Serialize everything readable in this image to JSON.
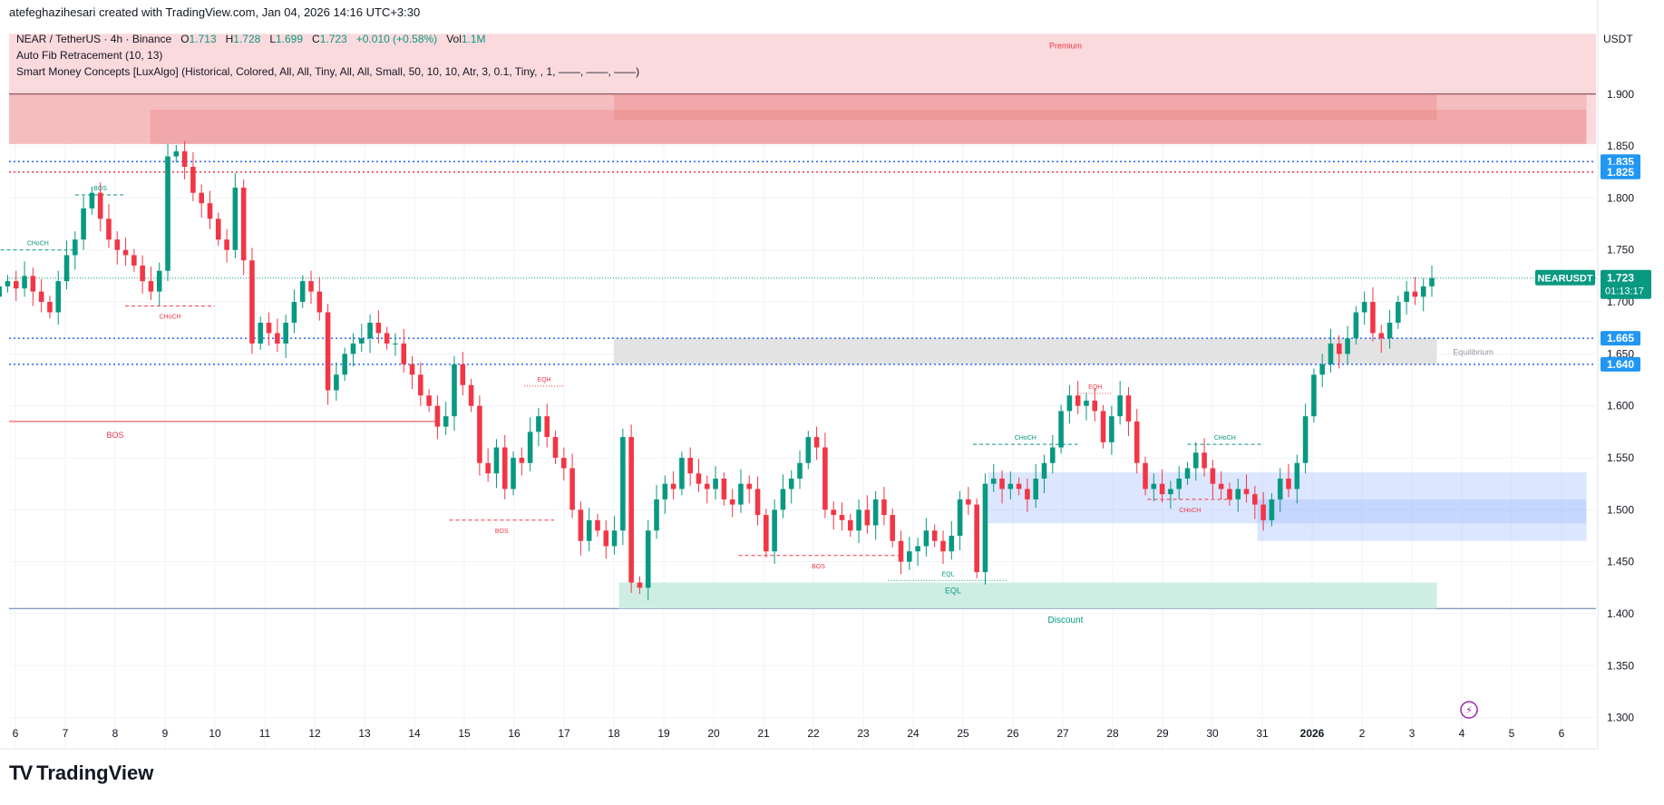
{
  "header": {
    "byline": "atefeghazihesari created with TradingView.com, Jan 04, 2026 14:16 UTC+3:30"
  },
  "legend": {
    "symbol": "NEAR / TetherUS · 4h · Binance",
    "o_label": "O",
    "o_value": "1.713",
    "h_label": "H",
    "h_value": "1.728",
    "l_label": "L",
    "l_value": "1.699",
    "c_label": "C",
    "c_value": "1.723",
    "change": "+0.010 (+0.58%)",
    "vol_label": "Vol",
    "vol_value": "1.1M",
    "indicator1": "Auto Fib Retracement (10, 13)",
    "indicator2": "Smart Money Concepts [LuxAlgo] (Historical, Colored, All, All, Tiny, All, All, Small, 50, 10, 10, Atr, 3, 0.1, Tiny, , 1, ——, ——, ——)"
  },
  "currency": "USDT",
  "brand": {
    "name": "TradingView",
    "logo": "TV"
  },
  "colors": {
    "up": "#089981",
    "down": "#f23645",
    "blue": "#2962ff",
    "premium_fill": "#fbdadd",
    "discount_fill": "#cfeee3",
    "equilibrium_fill": "#e3e3e3",
    "ob_blue": "#9bb7ff",
    "badge_blue": "#2196f3",
    "price_badge": "#089981"
  },
  "chart_data": {
    "type": "candlestick",
    "x_ticks": [
      "6",
      "7",
      "8",
      "9",
      "10",
      "11",
      "12",
      "13",
      "14",
      "15",
      "16",
      "17",
      "18",
      "19",
      "20",
      "21",
      "22",
      "23",
      "24",
      "25",
      "26",
      "27",
      "28",
      "29",
      "30",
      "31",
      "2026",
      "2",
      "3",
      "4",
      "5",
      "6"
    ],
    "y_ticks": [
      "1.900",
      "1.850",
      "1.800",
      "1.750",
      "1.700",
      "1.650",
      "1.600",
      "1.550",
      "1.500",
      "1.450",
      "1.400",
      "1.350",
      "1.300"
    ],
    "ylim": [
      1.27,
      1.96
    ],
    "price_levels": [
      {
        "label": "1.835",
        "value": 1.835,
        "style": "blue-dotted"
      },
      {
        "label": "1.825",
        "value": 1.825,
        "style": "red-dotted"
      },
      {
        "label": "1.665",
        "value": 1.665,
        "style": "blue-dotted"
      },
      {
        "label": "1.640",
        "value": 1.64,
        "style": "blue-dotted"
      }
    ],
    "current_price": {
      "symbol": "NEARUSDT",
      "value": "1.723",
      "countdown": "01:13:17"
    },
    "zones": [
      {
        "name": "Premium",
        "from_day": 5.0,
        "to_day": 37.5,
        "low": 1.852,
        "high": 1.958,
        "kind": "premium"
      },
      {
        "name": "Equilibrium",
        "from_day": 18.0,
        "to_day": 34.5,
        "low": 1.64,
        "high": 1.665,
        "kind": "equilibrium"
      },
      {
        "name": "Discount",
        "from_day": 5.0,
        "to_day": 37.5,
        "low": 1.405,
        "high": 1.405,
        "kind": "discount-line"
      },
      {
        "name": "EQL",
        "from_day": 18.1,
        "to_day": 34.5,
        "low": 1.405,
        "high": 1.43,
        "kind": "discount"
      }
    ],
    "order_blocks": [
      {
        "from_day": 5.0,
        "to_day": 37.5,
        "low": 1.852,
        "high": 1.9,
        "color": "red"
      },
      {
        "from_day": 8.7,
        "to_day": 37.5,
        "low": 1.852,
        "high": 1.885,
        "color": "red"
      },
      {
        "from_day": 18.0,
        "to_day": 34.5,
        "low": 1.875,
        "high": 1.9,
        "color": "red"
      },
      {
        "from_day": 25.5,
        "to_day": 37.5,
        "low": 1.487,
        "high": 1.536,
        "color": "blue"
      },
      {
        "from_day": 30.9,
        "to_day": 37.5,
        "low": 1.47,
        "high": 1.51,
        "color": "blue"
      }
    ],
    "structure": [
      {
        "label": "BOS",
        "color": "up",
        "day_from": 7.2,
        "day_to": 8.2,
        "price": 1.803
      },
      {
        "label": "CHoCH",
        "color": "up",
        "day_from": 5.7,
        "day_to": 7.2,
        "price": 1.75
      },
      {
        "label": "CHoCH",
        "color": "down",
        "day_from": 8.2,
        "day_to": 10.0,
        "price": 1.696
      },
      {
        "label": "BOS",
        "color": "down",
        "day_from": 5.0,
        "day_to": 14.5,
        "price": 1.585,
        "solid": true
      },
      {
        "label": "EQH",
        "color": "down",
        "day_from": 16.2,
        "day_to": 17.0,
        "price": 1.619,
        "dotted": true
      },
      {
        "label": "BOS",
        "color": "down",
        "day_from": 14.7,
        "day_to": 16.8,
        "price": 1.49
      },
      {
        "label": "BOS",
        "color": "down",
        "day_from": 20.5,
        "day_to": 23.7,
        "price": 1.456
      },
      {
        "label": "EQL",
        "color": "up",
        "day_from": 23.5,
        "day_to": 25.9,
        "price": 1.432,
        "dotted": true
      },
      {
        "label": "CHoCH",
        "color": "up",
        "day_from": 25.2,
        "day_to": 27.3,
        "price": 1.563
      },
      {
        "label": "EQH",
        "color": "down",
        "day_from": 27.3,
        "day_to": 28.0,
        "price": 1.612,
        "dotted": true
      },
      {
        "label": "CHoCH",
        "color": "up",
        "day_from": 29.5,
        "day_to": 31.0,
        "price": 1.563
      },
      {
        "label": "CHoCH",
        "color": "down",
        "day_from": 28.7,
        "day_to": 30.4,
        "price": 1.51
      }
    ],
    "closes": [
      1.69,
      1.7,
      1.68,
      1.705,
      1.715,
      1.72,
      1.713,
      1.725,
      1.71,
      1.7,
      1.69,
      1.72,
      1.745,
      1.76,
      1.79,
      1.805,
      1.78,
      1.76,
      1.75,
      1.745,
      1.735,
      1.72,
      1.71,
      1.73,
      1.84,
      1.845,
      1.83,
      1.805,
      1.795,
      1.78,
      1.76,
      1.75,
      1.81,
      1.74,
      1.66,
      1.68,
      1.67,
      1.66,
      1.68,
      1.7,
      1.72,
      1.71,
      1.69,
      1.615,
      1.63,
      1.65,
      1.66,
      1.665,
      1.68,
      1.67,
      1.66,
      1.66,
      1.64,
      1.63,
      1.61,
      1.6,
      1.58,
      1.59,
      1.64,
      1.62,
      1.6,
      1.545,
      1.535,
      1.56,
      1.52,
      1.55,
      1.545,
      1.575,
      1.59,
      1.57,
      1.55,
      1.54,
      1.5,
      1.47,
      1.49,
      1.48,
      1.465,
      1.48,
      1.57,
      1.43,
      1.425,
      1.48,
      1.51,
      1.525,
      1.52,
      1.55,
      1.535,
      1.525,
      1.52,
      1.53,
      1.51,
      1.505,
      1.525,
      1.52,
      1.495,
      1.46,
      1.5,
      1.52,
      1.53,
      1.545,
      1.57,
      1.56,
      1.5,
      1.495,
      1.49,
      1.48,
      1.5,
      1.485,
      1.51,
      1.495,
      1.47,
      1.45,
      1.46,
      1.465,
      1.48,
      1.47,
      1.46,
      1.475,
      1.51,
      1.505,
      1.44,
      1.525,
      1.53,
      1.52,
      1.525,
      1.52,
      1.51,
      1.53,
      1.545,
      1.56,
      1.595,
      1.61,
      1.6,
      1.605,
      1.595,
      1.565,
      1.59,
      1.61,
      1.585,
      1.545,
      1.52,
      1.525,
      1.515,
      1.52,
      1.53,
      1.54,
      1.555,
      1.54,
      1.525,
      1.52,
      1.51,
      1.52,
      1.515,
      1.505,
      1.49,
      1.51,
      1.53,
      1.52,
      1.545,
      1.59,
      1.63,
      1.64,
      1.66,
      1.65,
      1.665,
      1.69,
      1.7,
      1.67,
      1.665,
      1.68,
      1.7,
      1.71,
      1.705,
      1.715,
      1.723
    ],
    "series_start_day": 5.0,
    "series_end_day": 34.4
  }
}
